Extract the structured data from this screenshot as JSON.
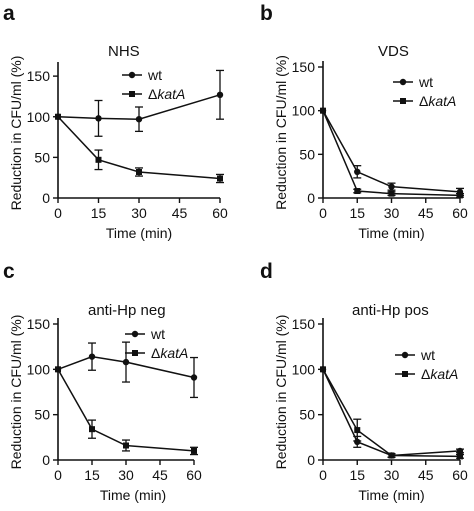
{
  "chart_data": [
    {
      "type": "line",
      "panel_label": "a",
      "title": "NHS",
      "xlabel": "Time (min)",
      "ylabel": "Reduction in CFU/ml (%)",
      "x": [
        0,
        15,
        30,
        60
      ],
      "xticks": [
        0,
        15,
        30,
        45,
        60
      ],
      "yticks": [
        0,
        50,
        100,
        150
      ],
      "xlim": [
        0,
        60
      ],
      "ylim": [
        0,
        160
      ],
      "legend_position": "top-right",
      "series": [
        {
          "name": "wt",
          "marker": "circle",
          "values": [
            100,
            98,
            97,
            127
          ],
          "errors": [
            0,
            22,
            15,
            30
          ]
        },
        {
          "name": "ΔkatA",
          "marker": "square",
          "values": [
            100,
            47,
            32,
            24
          ],
          "errors": [
            0,
            12,
            5,
            5
          ]
        }
      ]
    },
    {
      "type": "line",
      "panel_label": "b",
      "title": "VDS",
      "xlabel": "Time (min)",
      "ylabel": "Reduction in CFU/ml (%)",
      "x": [
        0,
        15,
        30,
        60
      ],
      "xticks": [
        0,
        15,
        30,
        45,
        60
      ],
      "yticks": [
        0,
        50,
        100,
        150
      ],
      "xlim": [
        0,
        60
      ],
      "ylim": [
        0,
        150
      ],
      "legend_position": "top-right",
      "series": [
        {
          "name": "wt",
          "marker": "circle",
          "values": [
            100,
            30,
            13,
            7
          ],
          "errors": [
            0,
            7,
            4,
            4
          ]
        },
        {
          "name": "ΔkatA",
          "marker": "square",
          "values": [
            100,
            8,
            5,
            3
          ],
          "errors": [
            0,
            2,
            2,
            2
          ]
        }
      ]
    },
    {
      "type": "line",
      "panel_label": "c",
      "title": "anti-Hp neg",
      "xlabel": "Time (min)",
      "ylabel": "Reduction in CFU/ml (%)",
      "x": [
        0,
        15,
        30,
        60
      ],
      "xticks": [
        0,
        15,
        30,
        45,
        60
      ],
      "yticks": [
        0,
        50,
        100,
        150
      ],
      "xlim": [
        0,
        60
      ],
      "ylim": [
        0,
        150
      ],
      "legend_position": "top-right",
      "series": [
        {
          "name": "wt",
          "marker": "circle",
          "values": [
            100,
            114,
            108,
            91
          ],
          "errors": [
            0,
            15,
            22,
            22
          ]
        },
        {
          "name": "ΔkatA",
          "marker": "square",
          "values": [
            100,
            34,
            16,
            10
          ],
          "errors": [
            0,
            10,
            6,
            4
          ]
        }
      ]
    },
    {
      "type": "line",
      "panel_label": "d",
      "title": "anti-Hp pos",
      "xlabel": "Time (min)",
      "ylabel": "Reduction in CFU/ml (%)",
      "x": [
        0,
        15,
        30,
        60
      ],
      "xticks": [
        0,
        15,
        30,
        45,
        60
      ],
      "yticks": [
        0,
        50,
        100,
        150
      ],
      "xlim": [
        0,
        60
      ],
      "ylim": [
        0,
        150
      ],
      "legend_position": "top-right",
      "series": [
        {
          "name": "wt",
          "marker": "circle",
          "values": [
            100,
            20,
            5,
            10
          ],
          "errors": [
            0,
            6,
            2,
            2
          ]
        },
        {
          "name": "ΔkatA",
          "marker": "square",
          "values": [
            100,
            33,
            5,
            4
          ],
          "errors": [
            0,
            12,
            2,
            2
          ]
        }
      ]
    }
  ]
}
